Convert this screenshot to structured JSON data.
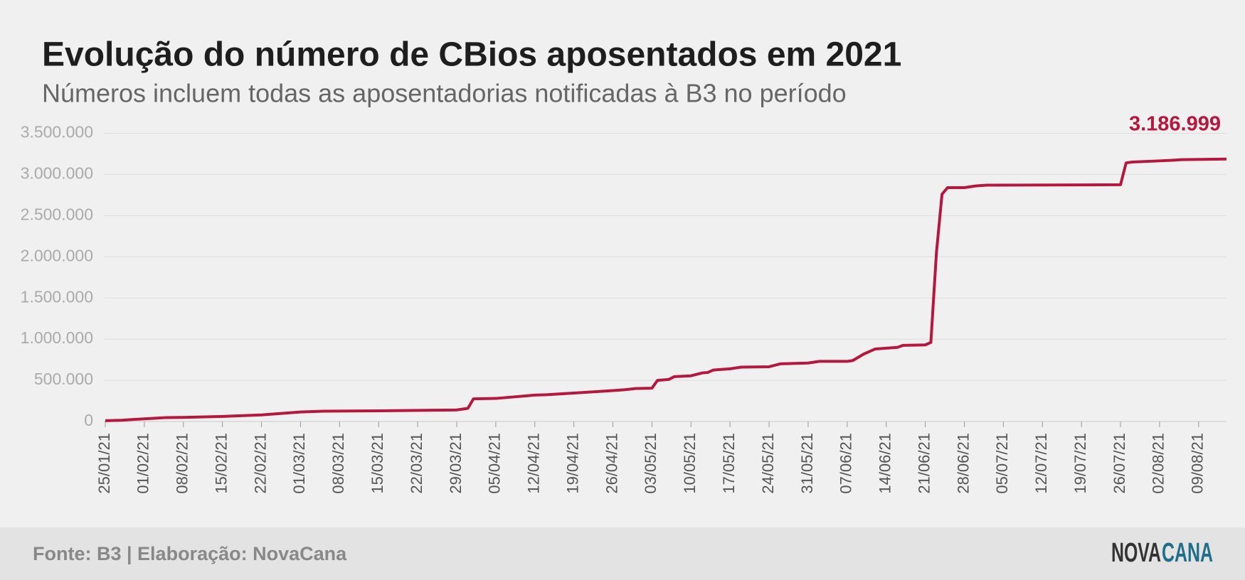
{
  "chart_data": {
    "type": "line",
    "title": "Evolução do número de CBios aposentados em 2021",
    "subtitle": "Números incluem todas as aposentadorias notificadas à B3 no período",
    "x": [
      "25/01/21",
      "28/01/21",
      "30/01/21",
      "03/02/21",
      "05/02/21",
      "08/02/21",
      "15/02/21",
      "22/02/21",
      "01/03/21",
      "05/03/21",
      "15/03/21",
      "22/03/21",
      "29/03/21",
      "31/03/21",
      "01/04/21",
      "05/04/21",
      "12/04/21",
      "14/04/21",
      "19/04/21",
      "26/04/21",
      "28/04/21",
      "30/04/21",
      "03/05/21",
      "04/05/21",
      "06/05/21",
      "07/05/21",
      "10/05/21",
      "12/05/21",
      "13/05/21",
      "14/05/21",
      "17/05/21",
      "19/05/21",
      "24/05/21",
      "26/05/21",
      "31/05/21",
      "02/06/21",
      "07/06/21",
      "08/06/21",
      "10/06/21",
      "12/06/21",
      "16/06/21",
      "17/06/21",
      "21/06/21",
      "22/06/21",
      "23/06/21",
      "24/06/21",
      "25/06/21",
      "28/06/21",
      "30/06/21",
      "02/07/21",
      "26/07/21",
      "27/07/21",
      "28/07/21",
      "02/08/21",
      "05/08/21",
      "06/08/21",
      "14/08/21"
    ],
    "values": [
      10000,
      15000,
      25000,
      40000,
      48000,
      50000,
      62000,
      80000,
      115000,
      125000,
      130000,
      135000,
      140000,
      160000,
      275000,
      280000,
      320000,
      325000,
      345000,
      375000,
      385000,
      400000,
      405000,
      500000,
      510000,
      545000,
      555000,
      590000,
      595000,
      625000,
      640000,
      660000,
      665000,
      700000,
      710000,
      730000,
      730000,
      740000,
      820000,
      880000,
      900000,
      925000,
      930000,
      960000,
      2050000,
      2760000,
      2840000,
      2840000,
      2860000,
      2870000,
      2875000,
      3140000,
      3150000,
      3165000,
      3175000,
      3180000,
      3186999
    ],
    "color": "#b5173f",
    "annotations": [
      {
        "x": "14/08/21",
        "y": 3186999,
        "label": "3.186.999"
      }
    ],
    "xlim": [
      "25/01/21",
      "14/08/21"
    ],
    "xticks": [
      "25/01/21",
      "01/02/21",
      "08/02/21",
      "15/02/21",
      "22/02/21",
      "01/03/21",
      "08/03/21",
      "15/03/21",
      "22/03/21",
      "29/03/21",
      "05/04/21",
      "12/04/21",
      "19/04/21",
      "26/04/21",
      "03/05/21",
      "10/05/21",
      "17/05/21",
      "24/05/21",
      "31/05/21",
      "07/06/21",
      "14/06/21",
      "21/06/21",
      "28/06/21",
      "05/07/21",
      "12/07/21",
      "19/07/21",
      "26/07/21",
      "02/08/21",
      "09/08/21"
    ],
    "ylim": [
      0,
      3500000
    ],
    "yticks": [
      0,
      {
        "value": 500000,
        "label": "500.000"
      },
      {
        "value": 1000000,
        "label": "1.000.000"
      },
      {
        "value": 1500000,
        "label": "1.500.000"
      },
      {
        "value": 2000000,
        "label": "2.000.000"
      },
      {
        "value": 2500000,
        "label": "2.500.000"
      },
      {
        "value": 3000000,
        "label": "3.000.000"
      },
      {
        "value": 3500000,
        "label": "3.500.000"
      }
    ],
    "grid": true
  },
  "footer": {
    "source": "Fonte: B3 | Elaboração: NovaCana",
    "logo_left": "NOVA",
    "logo_right": "CANA"
  }
}
